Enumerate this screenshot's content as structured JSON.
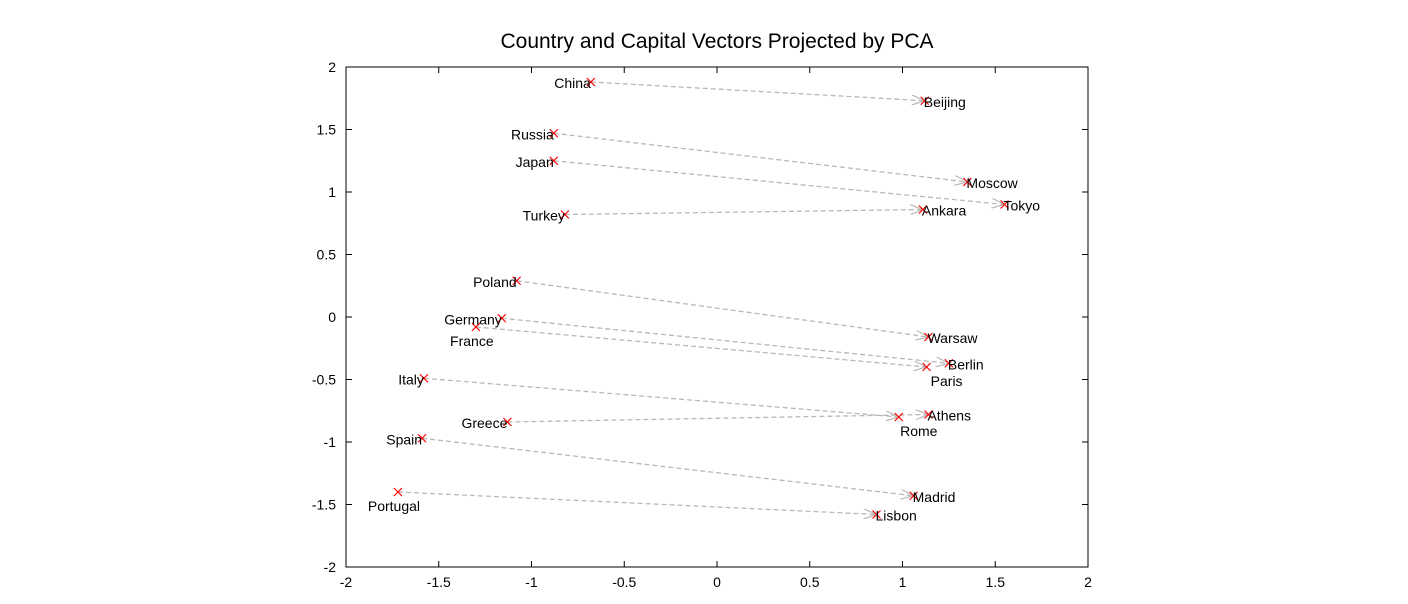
{
  "chart_data": {
    "type": "scatter",
    "title": "Country and Capital Vectors Projected by PCA",
    "xlabel": "",
    "ylabel": "",
    "xlim": [
      -2,
      2
    ],
    "ylim": [
      -2,
      2
    ],
    "xticks": [
      -2,
      -1.5,
      -1,
      -0.5,
      0,
      0.5,
      1,
      1.5,
      2
    ],
    "yticks": [
      -2,
      -1.5,
      -1,
      -0.5,
      0,
      0.5,
      1,
      1.5,
      2
    ],
    "xtick_labels": [
      "-2",
      "-1.5",
      "-1",
      "-0.5",
      "0",
      "0.5",
      "1",
      "1.5",
      "2"
    ],
    "ytick_labels": [
      "-2",
      "-1.5",
      "-1",
      "-0.5",
      "0",
      "0.5",
      "1",
      "1.5",
      "2"
    ],
    "grid": false,
    "colors": {
      "marker": "#ff0000",
      "arrow": "#b8b8b8",
      "axes": "#000000"
    },
    "pairs": [
      {
        "country": "China",
        "cx": -0.68,
        "cy": 1.88,
        "capital": "Beijing",
        "kx": 1.12,
        "ky": 1.73
      },
      {
        "country": "Russia",
        "cx": -0.88,
        "cy": 1.47,
        "capital": "Moscow",
        "kx": 1.35,
        "ky": 1.08
      },
      {
        "country": "Japan",
        "cx": -0.88,
        "cy": 1.25,
        "capital": "Tokyo",
        "kx": 1.55,
        "ky": 0.9
      },
      {
        "country": "Turkey",
        "cx": -0.82,
        "cy": 0.82,
        "capital": "Ankara",
        "kx": 1.11,
        "ky": 0.86
      },
      {
        "country": "Poland",
        "cx": -1.08,
        "cy": 0.29,
        "capital": "Warsaw",
        "kx": 1.14,
        "ky": -0.16
      },
      {
        "country": "Germany",
        "cx": -1.16,
        "cy": -0.01,
        "capital": "Berlin",
        "kx": 1.25,
        "ky": -0.37
      },
      {
        "country": "France",
        "cx": -1.3,
        "cy": -0.08,
        "capital": "Paris",
        "kx": 1.13,
        "ky": -0.4
      },
      {
        "country": "Italy",
        "cx": -1.58,
        "cy": -0.49,
        "capital": "Rome",
        "kx": 0.98,
        "ky": -0.8
      },
      {
        "country": "Greece",
        "cx": -1.13,
        "cy": -0.84,
        "capital": "Athens",
        "kx": 1.14,
        "ky": -0.78
      },
      {
        "country": "Spain",
        "cx": -1.59,
        "cy": -0.97,
        "capital": "Madrid",
        "kx": 1.06,
        "ky": -1.43
      },
      {
        "country": "Portugal",
        "cx": -1.72,
        "cy": -1.4,
        "capital": "Lisbon",
        "kx": 0.86,
        "ky": -1.58
      }
    ]
  }
}
